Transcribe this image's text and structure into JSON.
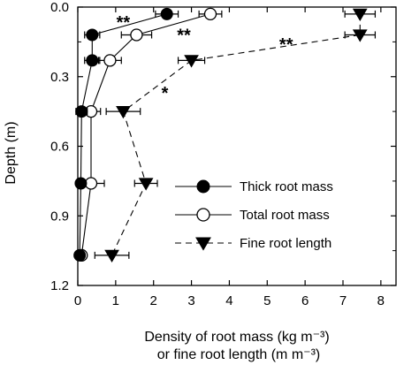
{
  "chart_data": {
    "type": "line",
    "x_range": [
      0,
      8.4
    ],
    "y_range": [
      0,
      1.2
    ],
    "y_inverted": true,
    "x_ticks": [
      0,
      1,
      2,
      3,
      4,
      5,
      6,
      7,
      8
    ],
    "x_tick_labels": [
      "0",
      "1",
      "2",
      "3",
      "4",
      "5",
      "6",
      "7",
      "8"
    ],
    "y_ticks": [
      0.0,
      0.3,
      0.6,
      0.9,
      1.2
    ],
    "y_tick_labels": [
      "0.0",
      "0.3",
      "0.6",
      "0.9",
      "1.2"
    ],
    "y_minor_ticks": [
      0.15,
      0.45,
      0.75,
      1.05
    ],
    "ylabel": "Depth (m)",
    "xlabel_line1": "Density of root mass (kg m⁻³)",
    "xlabel_line2": "or fine root length (m m⁻³)",
    "grid": false,
    "legend_placement": "lower-right",
    "series": [
      {
        "name": "Thick root mass",
        "marker": "filled-circle",
        "line": "solid",
        "points": [
          {
            "x": 2.35,
            "y": 0.03,
            "err": 0.3
          },
          {
            "x": 0.38,
            "y": 0.12,
            "err": 0.2
          },
          {
            "x": 0.38,
            "y": 0.23,
            "err": 0.2
          },
          {
            "x": 0.1,
            "y": 0.45,
            "err": 0.15
          },
          {
            "x": 0.08,
            "y": 0.76,
            "err": 0.1
          },
          {
            "x": 0.05,
            "y": 1.07,
            "err": 0.08
          }
        ]
      },
      {
        "name": "Total root mass",
        "marker": "open-circle",
        "line": "solid",
        "points": [
          {
            "x": 3.5,
            "y": 0.03,
            "err": 0.3
          },
          {
            "x": 1.55,
            "y": 0.12,
            "err": 0.4
          },
          {
            "x": 0.85,
            "y": 0.23,
            "err": 0.3
          },
          {
            "x": 0.35,
            "y": 0.45,
            "err": 0.25
          },
          {
            "x": 0.35,
            "y": 0.76,
            "err": 0.35
          },
          {
            "x": 0.1,
            "y": 1.07,
            "err": 0.08
          }
        ]
      },
      {
        "name": "Fine root length",
        "marker": "filled-triangle-down",
        "line": "dashed",
        "points": [
          {
            "x": 7.45,
            "y": 0.03,
            "err": 0.4
          },
          {
            "x": 7.45,
            "y": 0.12,
            "err": 0.4
          },
          {
            "x": 3.0,
            "y": 0.23,
            "err": 0.35
          },
          {
            "x": 1.2,
            "y": 0.45,
            "err": 0.45
          },
          {
            "x": 1.8,
            "y": 0.76,
            "err": 0.3
          },
          {
            "x": 0.9,
            "y": 1.07,
            "err": 0.45
          }
        ]
      }
    ],
    "annotations": [
      {
        "text": "**",
        "x": 1.2,
        "y": 0.065
      },
      {
        "text": "**",
        "x": 2.8,
        "y": 0.12
      },
      {
        "text": "**",
        "x": 5.5,
        "y": 0.16
      },
      {
        "text": "*",
        "x": 2.3,
        "y": 0.37
      }
    ]
  }
}
